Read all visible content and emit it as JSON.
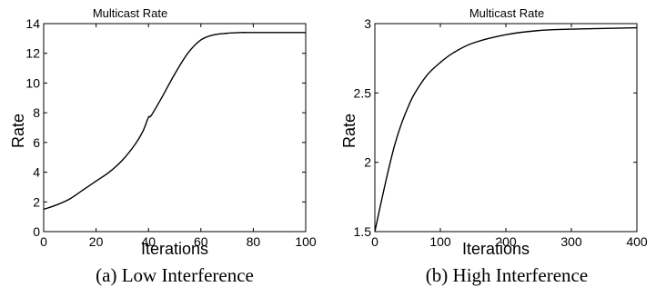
{
  "chart_data": [
    {
      "type": "line",
      "title": "Multicast Rate",
      "xlabel": "Iterations",
      "ylabel": "Rate",
      "caption": "(a) Low Interference",
      "xlim": [
        0,
        100
      ],
      "ylim": [
        0,
        14
      ],
      "xticks": [
        "0",
        "20",
        "40",
        "60",
        "80",
        "100"
      ],
      "yticks": [
        "0",
        "2",
        "4",
        "6",
        "8",
        "10",
        "12",
        "14"
      ],
      "grid": false,
      "series": [
        {
          "x": [
            0,
            5,
            10,
            15,
            20,
            25,
            30,
            35,
            38,
            40,
            41,
            45,
            50,
            55,
            60,
            65,
            70,
            75,
            80,
            90,
            100
          ],
          "y": [
            1.5,
            1.8,
            2.2,
            2.8,
            3.4,
            4.0,
            4.8,
            5.9,
            6.8,
            7.7,
            7.8,
            9.0,
            10.6,
            12.0,
            12.9,
            13.25,
            13.35,
            13.4,
            13.4,
            13.4,
            13.4
          ]
        }
      ]
    },
    {
      "type": "line",
      "title": "Multicast Rate",
      "xlabel": "Iterations",
      "ylabel": "Rate",
      "caption": "(b) High Interference",
      "xlim": [
        0,
        400
      ],
      "ylim": [
        1.5,
        3
      ],
      "xticks": [
        "0",
        "100",
        "200",
        "300",
        "400"
      ],
      "yticks": [
        "1.5",
        "2",
        "2.5",
        "3"
      ],
      "grid": false,
      "series": [
        {
          "x": [
            0,
            10,
            20,
            30,
            40,
            50,
            60,
            80,
            100,
            120,
            150,
            200,
            250,
            300,
            350,
            400
          ],
          "y": [
            1.5,
            1.72,
            1.93,
            2.12,
            2.27,
            2.39,
            2.49,
            2.63,
            2.72,
            2.79,
            2.86,
            2.92,
            2.95,
            2.96,
            2.965,
            2.97
          ]
        }
      ]
    }
  ]
}
